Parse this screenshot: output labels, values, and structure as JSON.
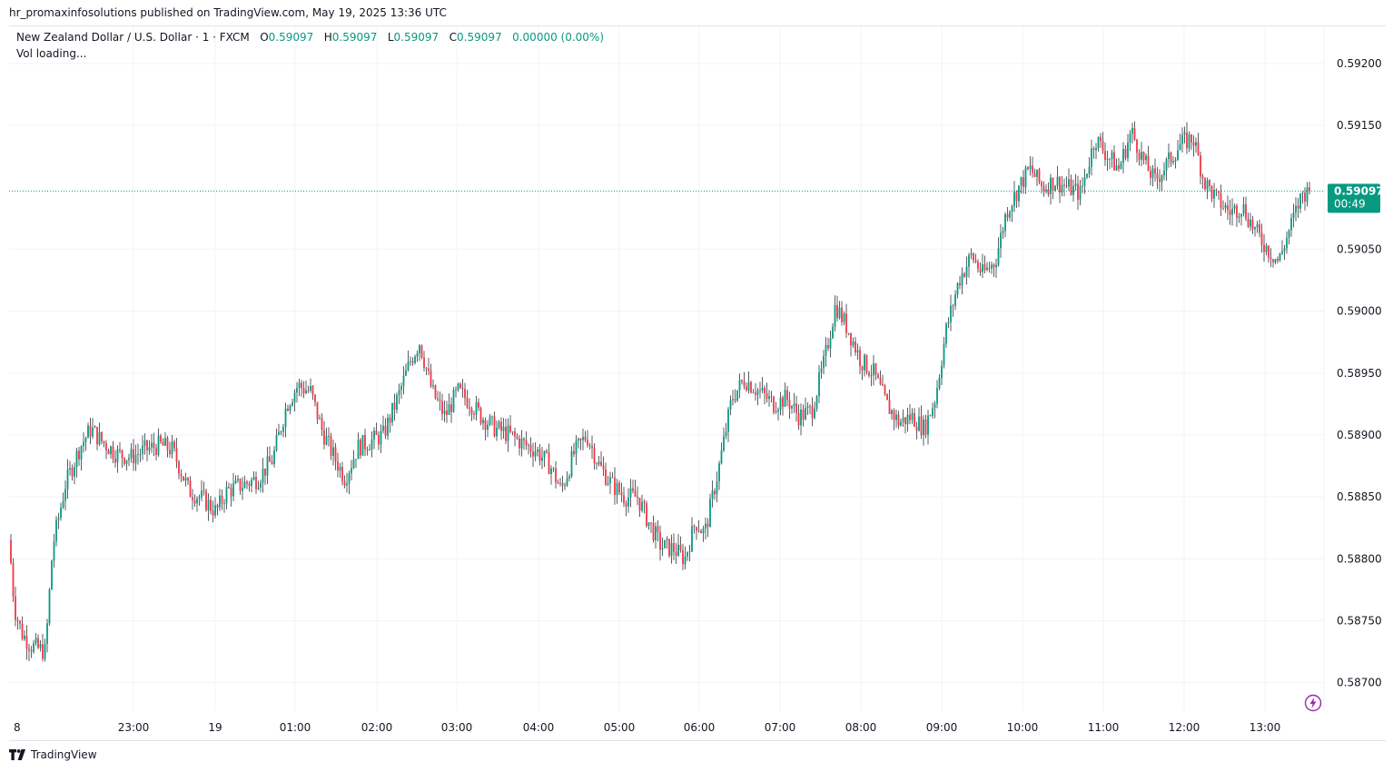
{
  "publish_line": "hr_promaxinfosolutions published on TradingView.com, May 19, 2025 13:36 UTC",
  "legend": {
    "symbol": "New Zealand Dollar / U.S. Dollar · 1 · FXCM",
    "o_label": "O",
    "o_value": "0.59097",
    "h_label": "H",
    "h_value": "0.59097",
    "l_label": "L",
    "l_value": "0.59097",
    "c_label": "C",
    "c_value": "0.59097",
    "change": "0.00000 (0.00%)"
  },
  "vol_text": "Vol loading...",
  "footer": {
    "brand": "TradingView",
    "logo_icon": "tradingview-logo-icon"
  },
  "colors": {
    "up": "#089981",
    "down": "#f23645",
    "wick": "#131722",
    "grid": "#f0f3fa",
    "price_label_bg": "#089981"
  },
  "chart_data": {
    "type": "candlestick",
    "title": "New Zealand Dollar / U.S. Dollar · 1 · FXCM",
    "xlabel": "",
    "ylabel": "",
    "ylim": [
      0.58677,
      0.5923
    ],
    "yticks": [
      "0.59200",
      "0.59150",
      "0.59050",
      "0.59000",
      "0.58950",
      "0.58900",
      "0.58850",
      "0.58800",
      "0.58750",
      "0.58700"
    ],
    "xticks": [
      "8",
      "23:00",
      "19",
      "01:00",
      "02:00",
      "03:00",
      "04:00",
      "05:00",
      "06:00",
      "07:00",
      "08:00",
      "09:00",
      "10:00",
      "11:00",
      "12:00",
      "13:00"
    ],
    "current_price": {
      "value": 0.59097,
      "label": "0.59097",
      "countdown": "00:49"
    },
    "path_points": [
      [
        0,
        0.58815
      ],
      [
        6,
        0.5876
      ],
      [
        14,
        0.5874
      ],
      [
        24,
        0.5873
      ],
      [
        40,
        0.58725
      ],
      [
        48,
        0.5881
      ],
      [
        62,
        0.5886
      ],
      [
        78,
        0.5889
      ],
      [
        90,
        0.58905
      ],
      [
        102,
        0.58895
      ],
      [
        118,
        0.58885
      ],
      [
        134,
        0.58882
      ],
      [
        150,
        0.58888
      ],
      [
        166,
        0.58892
      ],
      [
        180,
        0.58888
      ],
      [
        198,
        0.58855
      ],
      [
        214,
        0.58848
      ],
      [
        228,
        0.58838
      ],
      [
        240,
        0.58855
      ],
      [
        258,
        0.5886
      ],
      [
        274,
        0.58865
      ],
      [
        290,
        0.5888
      ],
      [
        306,
        0.58925
      ],
      [
        318,
        0.5894
      ],
      [
        332,
        0.58935
      ],
      [
        344,
        0.58905
      ],
      [
        356,
        0.58885
      ],
      [
        370,
        0.58865
      ],
      [
        384,
        0.5889
      ],
      [
        398,
        0.58895
      ],
      [
        412,
        0.589
      ],
      [
        428,
        0.5893
      ],
      [
        442,
        0.5896
      ],
      [
        452,
        0.58975
      ],
      [
        466,
        0.58935
      ],
      [
        480,
        0.58915
      ],
      [
        494,
        0.58935
      ],
      [
        506,
        0.58928
      ],
      [
        520,
        0.58915
      ],
      [
        536,
        0.58905
      ],
      [
        552,
        0.589
      ],
      [
        566,
        0.58893
      ],
      [
        580,
        0.58888
      ],
      [
        596,
        0.58875
      ],
      [
        608,
        0.58855
      ],
      [
        622,
        0.58885
      ],
      [
        636,
        0.589
      ],
      [
        650,
        0.58875
      ],
      [
        664,
        0.5886
      ],
      [
        678,
        0.5885
      ],
      [
        692,
        0.5885
      ],
      [
        704,
        0.5883
      ],
      [
        718,
        0.5881
      ],
      [
        732,
        0.58808
      ],
      [
        744,
        0.588
      ],
      [
        756,
        0.5883
      ],
      [
        766,
        0.5882
      ],
      [
        782,
        0.58875
      ],
      [
        796,
        0.5893
      ],
      [
        810,
        0.58945
      ],
      [
        826,
        0.58935
      ],
      [
        842,
        0.58925
      ],
      [
        856,
        0.5893
      ],
      [
        870,
        0.58915
      ],
      [
        884,
        0.5892
      ],
      [
        898,
        0.5896
      ],
      [
        910,
        0.59005
      ],
      [
        924,
        0.58985
      ],
      [
        938,
        0.5896
      ],
      [
        952,
        0.5895
      ],
      [
        966,
        0.58925
      ],
      [
        980,
        0.5891
      ],
      [
        994,
        0.58915
      ],
      [
        1008,
        0.58905
      ],
      [
        1020,
        0.5893
      ],
      [
        1032,
        0.58985
      ],
      [
        1046,
        0.59025
      ],
      [
        1060,
        0.59045
      ],
      [
        1072,
        0.5903
      ],
      [
        1086,
        0.5904
      ],
      [
        1098,
        0.5908
      ],
      [
        1112,
        0.591
      ],
      [
        1124,
        0.59115
      ],
      [
        1138,
        0.591
      ],
      [
        1152,
        0.59105
      ],
      [
        1166,
        0.591
      ],
      [
        1180,
        0.59095
      ],
      [
        1196,
        0.5914
      ],
      [
        1210,
        0.59125
      ],
      [
        1222,
        0.59115
      ],
      [
        1236,
        0.59145
      ],
      [
        1250,
        0.5912
      ],
      [
        1262,
        0.59105
      ],
      [
        1276,
        0.5912
      ],
      [
        1290,
        0.59135
      ],
      [
        1304,
        0.5914
      ],
      [
        1316,
        0.59105
      ],
      [
        1330,
        0.5909
      ],
      [
        1344,
        0.5908
      ],
      [
        1358,
        0.59085
      ],
      [
        1372,
        0.59065
      ],
      [
        1386,
        0.5905
      ],
      [
        1398,
        0.5904
      ],
      [
        1412,
        0.5907
      ],
      [
        1424,
        0.59095
      ],
      [
        1434,
        0.59097
      ]
    ]
  }
}
